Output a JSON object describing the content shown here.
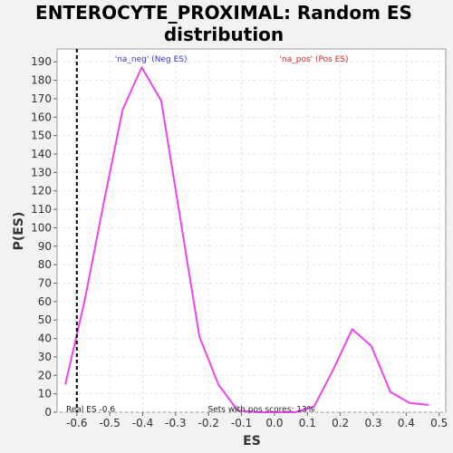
{
  "chart_data": {
    "type": "line",
    "title_line1": "ENTEROCYTE_PROXIMAL: Random ES",
    "title_line2": "distribution",
    "xlabel": "ES",
    "ylabel": "P(ES)",
    "xlim": [
      -0.66,
      0.52
    ],
    "ylim": [
      0,
      197
    ],
    "x_ticks": [
      -0.6,
      -0.5,
      -0.4,
      -0.3,
      -0.2,
      -0.1,
      0.0,
      0.1,
      0.2,
      0.3,
      0.4,
      0.5
    ],
    "x_tick_labels": [
      "-0.6",
      "-0.5",
      "-0.4",
      "-0.3",
      "-0.2",
      "-0.1",
      "0.0",
      "0.1",
      "0.2",
      "0.3",
      "0.4",
      "0.5"
    ],
    "y_ticks": [
      0,
      10,
      20,
      30,
      40,
      50,
      60,
      70,
      80,
      90,
      100,
      110,
      120,
      130,
      140,
      150,
      160,
      170,
      180,
      190
    ],
    "grid": true,
    "series": [
      {
        "color": "#ee44ee",
        "x": [
          -0.635,
          -0.577,
          -0.519,
          -0.461,
          -0.403,
          -0.344,
          -0.286,
          -0.228,
          -0.17,
          -0.112,
          -0.054,
          0.004,
          0.062,
          0.12,
          0.178,
          0.236,
          0.294,
          0.352,
          0.41,
          0.468
        ],
        "y": [
          15,
          60,
          113,
          164,
          187,
          169,
          105,
          41,
          15,
          1,
          0,
          0,
          0,
          3,
          23,
          45,
          36,
          11,
          5,
          4
        ]
      }
    ],
    "real_es_line": {
      "x": -0.6,
      "color": "#000000"
    },
    "annotations": {
      "neg_label": "'na_neg' (Neg ES)",
      "neg_color": "#3333cc",
      "pos_label": "'na_pos' (Pos ES)",
      "pos_color": "#dd2222",
      "real_es_text": "Real ES -0.6",
      "pos_scores_text": "Sets with pos scores: 13%"
    }
  }
}
